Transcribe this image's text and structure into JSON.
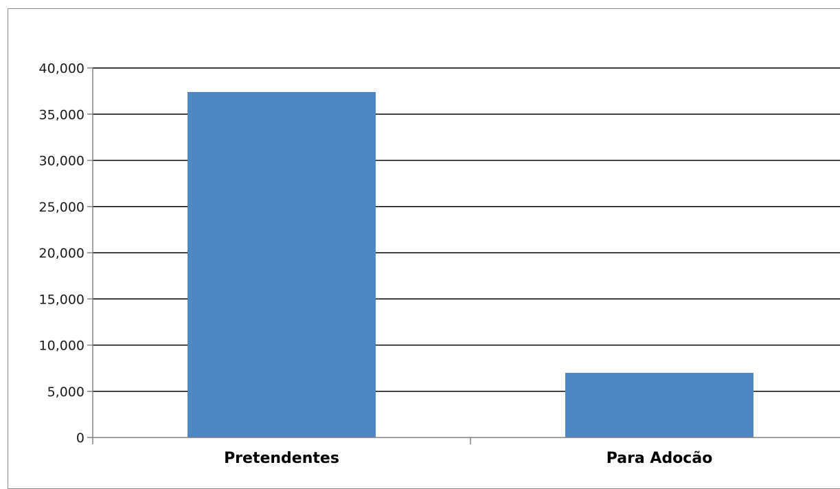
{
  "chart_data": {
    "type": "bar",
    "title": "",
    "xlabel": "",
    "ylabel": "",
    "categories": [
      "Pretendentes",
      "Para Adocão"
    ],
    "series": [
      {
        "values": [
          37400,
          7000
        ]
      }
    ],
    "ylim": [
      0,
      40000
    ],
    "yticks": [
      0,
      5000,
      10000,
      15000,
      20000,
      25000,
      30000,
      35000,
      40000
    ],
    "ytick_labels": [
      "0",
      "5,000",
      "10,000",
      "15,000",
      "20,000",
      "25,000",
      "30,000",
      "35,000",
      "40,000"
    ],
    "grid": true,
    "legend": "none",
    "colors": {
      "bar": "#4f86c4",
      "grid": "#000000",
      "axis": "#808080",
      "frame": "#8a8a8a"
    }
  }
}
